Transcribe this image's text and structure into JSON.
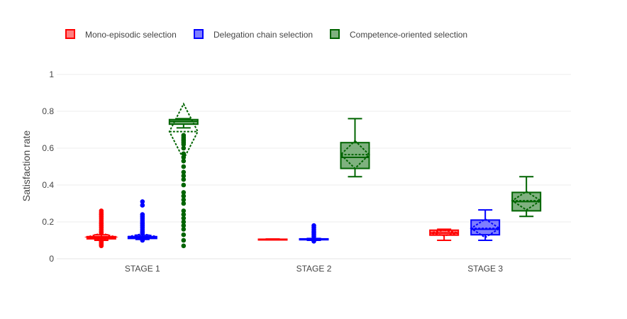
{
  "chart_data": {
    "type": "box",
    "ylabel": "Satisfaction rate",
    "ylim": [
      0,
      1
    ],
    "yticks": [
      0,
      0.2,
      0.4,
      0.6,
      0.8,
      1
    ],
    "ytick_labels": [
      "0",
      "0.2",
      "0.4",
      "0.6",
      "0.8",
      "1"
    ],
    "grid": true,
    "legend_position": "top-left",
    "categories": [
      "STAGE 1",
      "STAGE 2",
      "STAGE 3"
    ],
    "series": [
      {
        "name": "Mono-episodic selection",
        "color": "#ff0000",
        "boxes": [
          {
            "min": 0.1,
            "q1": 0.108,
            "median": 0.113,
            "q3": 0.12,
            "max": 0.13,
            "mean": 0.118,
            "sd": 0.02,
            "outliers": [
              0.07,
              0.075,
              0.08,
              0.085,
              0.09,
              0.095,
              0.14,
              0.15,
              0.16,
              0.17,
              0.18,
              0.19,
              0.2,
              0.21,
              0.22,
              0.23,
              0.24,
              0.25,
              0.26
            ]
          },
          {
            "min": 0.103,
            "q1": 0.104,
            "median": 0.105,
            "q3": 0.106,
            "max": 0.107,
            "mean": 0.105,
            "sd": 0.001,
            "outliers": []
          },
          {
            "min": 0.1,
            "q1": 0.128,
            "median": 0.14,
            "q3": 0.155,
            "max": 0.16,
            "mean": 0.14,
            "sd": 0.015,
            "outliers": []
          }
        ]
      },
      {
        "name": "Delegation chain selection",
        "color": "#0000ff",
        "boxes": [
          {
            "min": 0.105,
            "q1": 0.11,
            "median": 0.115,
            "q3": 0.12,
            "max": 0.128,
            "mean": 0.12,
            "sd": 0.015,
            "outliers": [
              0.1,
              0.14,
              0.15,
              0.16,
              0.17,
              0.18,
              0.19,
              0.2,
              0.21,
              0.22,
              0.23,
              0.24,
              0.29,
              0.31
            ]
          },
          {
            "min": 0.1,
            "q1": 0.103,
            "median": 0.105,
            "q3": 0.108,
            "max": 0.11,
            "mean": 0.106,
            "sd": 0.004,
            "outliers": [
              0.095,
              0.12,
              0.13,
              0.14,
              0.15,
              0.16,
              0.17,
              0.18
            ]
          },
          {
            "min": 0.1,
            "q1": 0.13,
            "median": 0.16,
            "q3": 0.21,
            "max": 0.265,
            "mean": 0.165,
            "sd": 0.05,
            "outliers": []
          }
        ]
      },
      {
        "name": "Competence-oriented selection",
        "color": "#006400",
        "boxes": [
          {
            "min": 0.71,
            "q1": 0.73,
            "median": 0.745,
            "q3": 0.755,
            "max": 0.76,
            "mean": 0.69,
            "sd": 0.15,
            "outliers": [
              0.07,
              0.1,
              0.13,
              0.16,
              0.18,
              0.2,
              0.22,
              0.24,
              0.26,
              0.3,
              0.32,
              0.34,
              0.36,
              0.4,
              0.43,
              0.45,
              0.47,
              0.5,
              0.53,
              0.55,
              0.57,
              0.6,
              0.62,
              0.63,
              0.64,
              0.65,
              0.66,
              0.67
            ]
          },
          {
            "min": 0.445,
            "q1": 0.49,
            "median": 0.55,
            "q3": 0.63,
            "max": 0.76,
            "mean": 0.565,
            "sd": 0.075,
            "outliers": []
          },
          {
            "min": 0.23,
            "q1": 0.26,
            "median": 0.31,
            "q3": 0.36,
            "max": 0.445,
            "mean": 0.315,
            "sd": 0.05,
            "outliers": []
          }
        ]
      }
    ]
  }
}
